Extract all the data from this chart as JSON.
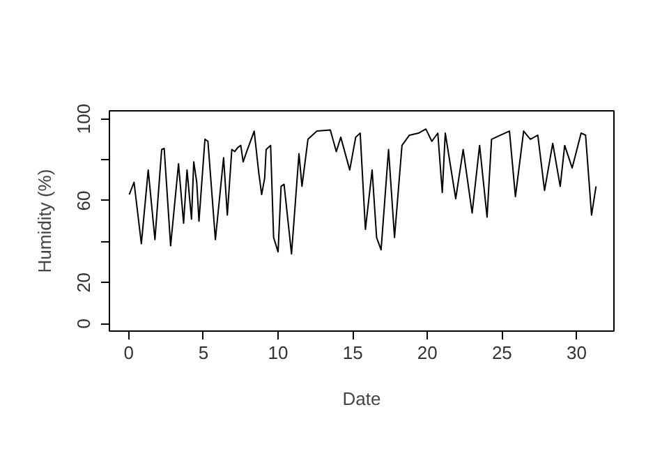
{
  "chart_data": {
    "type": "line",
    "xlabel": "Date",
    "ylabel": "Humidity (%)",
    "x": [
      0.03,
      0.35,
      0.84,
      1.3,
      1.75,
      2.2,
      2.37,
      2.8,
      3.33,
      3.67,
      3.9,
      4.2,
      4.35,
      4.55,
      4.7,
      5.1,
      5.3,
      5.8,
      6.35,
      6.6,
      6.9,
      7.1,
      7.3,
      7.5,
      7.66,
      7.9,
      8.1,
      8.4,
      8.7,
      8.9,
      9.1,
      9.2,
      9.5,
      9.7,
      10.0,
      10.2,
      10.4,
      10.9,
      11.4,
      11.6,
      12.0,
      12.6,
      13.5,
      13.9,
      14.2,
      14.8,
      15.2,
      15.5,
      15.85,
      16.3,
      16.6,
      16.9,
      17.4,
      17.8,
      18.3,
      18.8,
      19.4,
      19.9,
      20.3,
      20.7,
      21.0,
      21.2,
      21.9,
      22.4,
      23.0,
      23.5,
      24.0,
      24.3,
      24.9,
      25.5,
      25.9,
      26.45,
      26.9,
      27.4,
      27.85,
      28.4,
      28.9,
      29.2,
      29.7,
      30.3,
      30.6,
      31.0,
      31.3
    ],
    "values": [
      63,
      69,
      39,
      75,
      41,
      85,
      85.5,
      38,
      78,
      49,
      75,
      51,
      79,
      69,
      50,
      90,
      89,
      41,
      81,
      53,
      85,
      84,
      86,
      87,
      79,
      84,
      88,
      94,
      74,
      63,
      71,
      85,
      87,
      42,
      35,
      67,
      68,
      34,
      83,
      67,
      90,
      94,
      94.5,
      84,
      91,
      75,
      91,
      93,
      46,
      75,
      42,
      36,
      85,
      42,
      87,
      92,
      93,
      95,
      89,
      93,
      64,
      93,
      61,
      85,
      54,
      87,
      52,
      90,
      92,
      94,
      62,
      94,
      90,
      92,
      65,
      88,
      67,
      87,
      76,
      93,
      92,
      53,
      67
    ],
    "color": "#000000",
    "line_style": "solid",
    "marker": "none",
    "grid": false,
    "xlim": [
      -1.3,
      32.5
    ],
    "ylim": [
      -3.7,
      103.9
    ],
    "xticks": [
      0,
      5,
      10,
      15,
      20,
      25,
      30
    ],
    "yticks": [
      0,
      20,
      {
        "value": 40,
        "label": null
      },
      60,
      {
        "value": 80,
        "label": null
      },
      100
    ]
  }
}
